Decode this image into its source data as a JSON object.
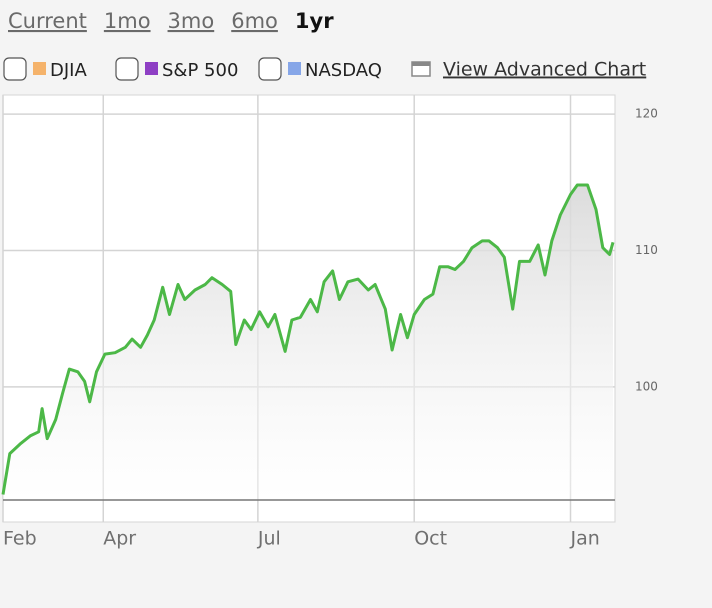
{
  "tabs": [
    "Current",
    "1mo",
    "3mo",
    "6mo",
    "1yr"
  ],
  "selected_tab": 4,
  "compare": [
    {
      "name": "DJIA",
      "color": "#f5b36b"
    },
    {
      "name": "S&P 500",
      "color": "#8e3fc4"
    },
    {
      "name": "NASDAQ",
      "color": "#86a6e8"
    }
  ],
  "advanced_link": "View Advanced Chart",
  "chart_data": {
    "type": "line",
    "x": [
      0,
      4,
      10,
      16,
      21,
      23,
      26,
      31,
      35,
      39,
      44,
      48,
      51,
      55,
      60,
      66,
      72,
      76,
      81,
      85,
      89,
      94,
      98,
      103,
      107,
      113,
      119,
      123,
      129,
      134,
      137,
      142,
      146,
      151,
      156,
      160,
      166,
      170,
      175,
      181,
      185,
      189,
      194,
      198,
      203,
      209,
      215,
      219,
      225,
      229,
      234,
      238,
      242,
      248,
      253,
      257,
      262,
      266,
      271,
      276,
      282,
      286,
      291,
      295,
      300,
      304,
      310,
      315,
      319,
      323,
      328,
      334,
      338,
      344,
      349,
      353,
      357,
      359
    ],
    "series": [
      {
        "color": "#4cb847",
        "values": [
          92.1,
          95.1,
          95.8,
          96.4,
          96.7,
          98.4,
          96.2,
          97.6,
          99.5,
          101.3,
          101.1,
          100.4,
          98.9,
          101.1,
          102.4,
          102.5,
          102.9,
          103.5,
          102.9,
          103.8,
          104.9,
          107.3,
          105.3,
          107.5,
          106.4,
          107.1,
          107.5,
          108.0,
          107.5,
          107.0,
          103.1,
          104.9,
          104.2,
          105.5,
          104.4,
          105.3,
          102.6,
          104.9,
          105.1,
          106.4,
          105.5,
          107.7,
          108.5,
          106.4,
          107.7,
          107.9,
          107.1,
          107.5,
          105.7,
          102.7,
          105.3,
          103.6,
          105.3,
          106.4,
          106.8,
          108.8,
          108.8,
          108.6,
          109.2,
          110.2,
          110.7,
          110.7,
          110.2,
          109.5,
          105.7,
          109.2,
          109.2,
          110.4,
          108.2,
          110.7,
          112.6,
          114.1,
          114.8,
          114.8,
          113.0,
          110.2,
          109.7,
          110.6
        ]
      }
    ],
    "xlim": [
      0,
      359
    ],
    "xticks": [
      {
        "value": 0,
        "label": "Feb"
      },
      {
        "value": 59,
        "label": "Apr"
      },
      {
        "value": 150,
        "label": "Jul"
      },
      {
        "value": 242,
        "label": "Oct"
      },
      {
        "value": 334,
        "label": "Jan"
      }
    ],
    "ylim": [
      91.7,
      121.4
    ],
    "yticks": [
      100,
      110,
      120
    ],
    "grid": true,
    "y_axis_side": "right"
  }
}
